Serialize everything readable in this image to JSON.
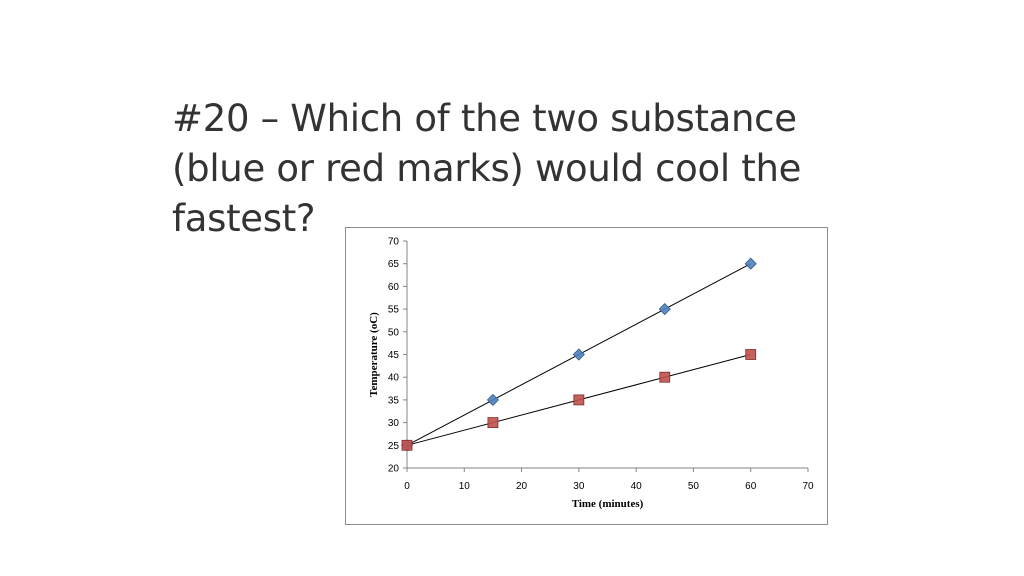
{
  "slide": {
    "title_lines": [
      "#20  – Which of the two substance",
      "(blue or red marks) would cool the",
      "fastest?"
    ]
  },
  "chart_data": {
    "type": "scatter",
    "title": "",
    "xlabel": "Time (minutes)",
    "ylabel": "Temperature (oC)",
    "xlim": [
      0,
      70
    ],
    "ylim": [
      20,
      70
    ],
    "x_ticks": [
      0,
      10,
      20,
      30,
      40,
      50,
      60,
      70
    ],
    "y_ticks": [
      20,
      25,
      30,
      35,
      40,
      45,
      50,
      55,
      60,
      65,
      70
    ],
    "grid": false,
    "legend": "none",
    "series": [
      {
        "marker": "diamond",
        "color": "#4f81bd",
        "x": [
          0,
          15,
          30,
          45,
          60
        ],
        "y": [
          25,
          35,
          45,
          55,
          65
        ],
        "trendline": true
      },
      {
        "marker": "square",
        "color": "#c0504d",
        "x": [
          0,
          15,
          30,
          45,
          60
        ],
        "y": [
          25,
          30,
          35,
          40,
          45
        ],
        "trendline": true
      }
    ]
  }
}
